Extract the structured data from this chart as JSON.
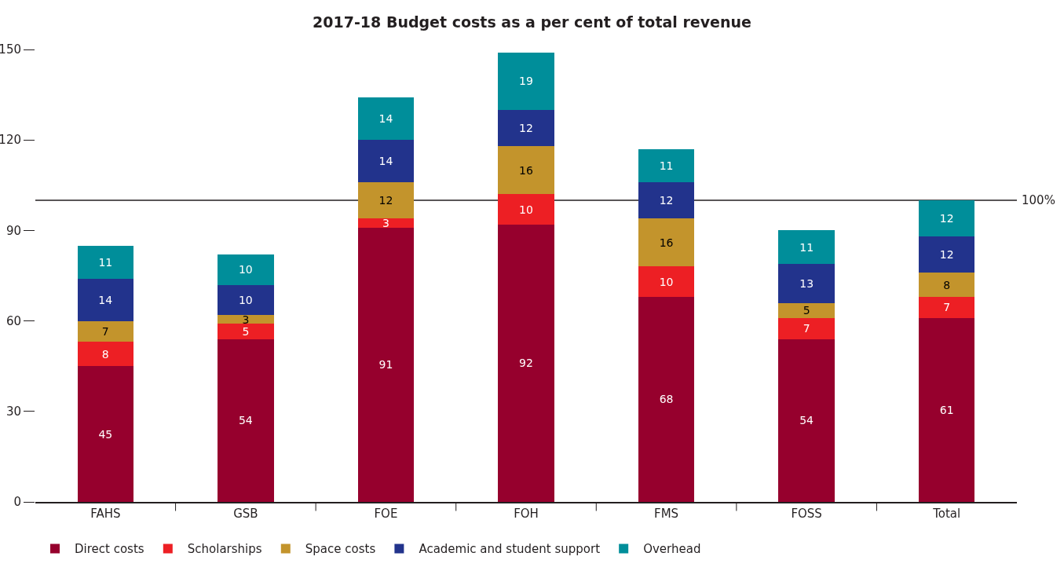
{
  "chart_data": {
    "type": "bar",
    "title": "2017-18 Budget costs as a per cent of total revenue",
    "categories": [
      "FAHS",
      "GSB",
      "FOE",
      "FOH",
      "FMS",
      "FOSS",
      "Total"
    ],
    "stacked": true,
    "series": [
      {
        "name": "Direct costs",
        "color": "#96002d",
        "values": [
          45,
          54,
          91,
          92,
          68,
          54,
          61
        ]
      },
      {
        "name": "Scholarships",
        "color": "#ed1f24",
        "values": [
          8,
          5,
          3,
          10,
          10,
          7,
          7
        ]
      },
      {
        "name": "Space costs",
        "color": "#c3942c",
        "values": [
          7,
          3,
          12,
          16,
          16,
          5,
          8
        ]
      },
      {
        "name": "Academic and student support",
        "color": "#22338c",
        "values": [
          14,
          10,
          14,
          12,
          12,
          13,
          12
        ]
      },
      {
        "name": "Overhead",
        "color": "#008e9a",
        "values": [
          11,
          10,
          14,
          19,
          11,
          11,
          12
        ]
      }
    ],
    "data_labels": true,
    "ylim": [
      0,
      150
    ],
    "yticks": [
      0,
      30,
      60,
      90,
      120,
      150
    ],
    "ref_lines": [
      {
        "axis": "y",
        "value": 100,
        "label": "100%",
        "color": "#231f20"
      }
    ],
    "grid": false,
    "legend": "bottom"
  }
}
